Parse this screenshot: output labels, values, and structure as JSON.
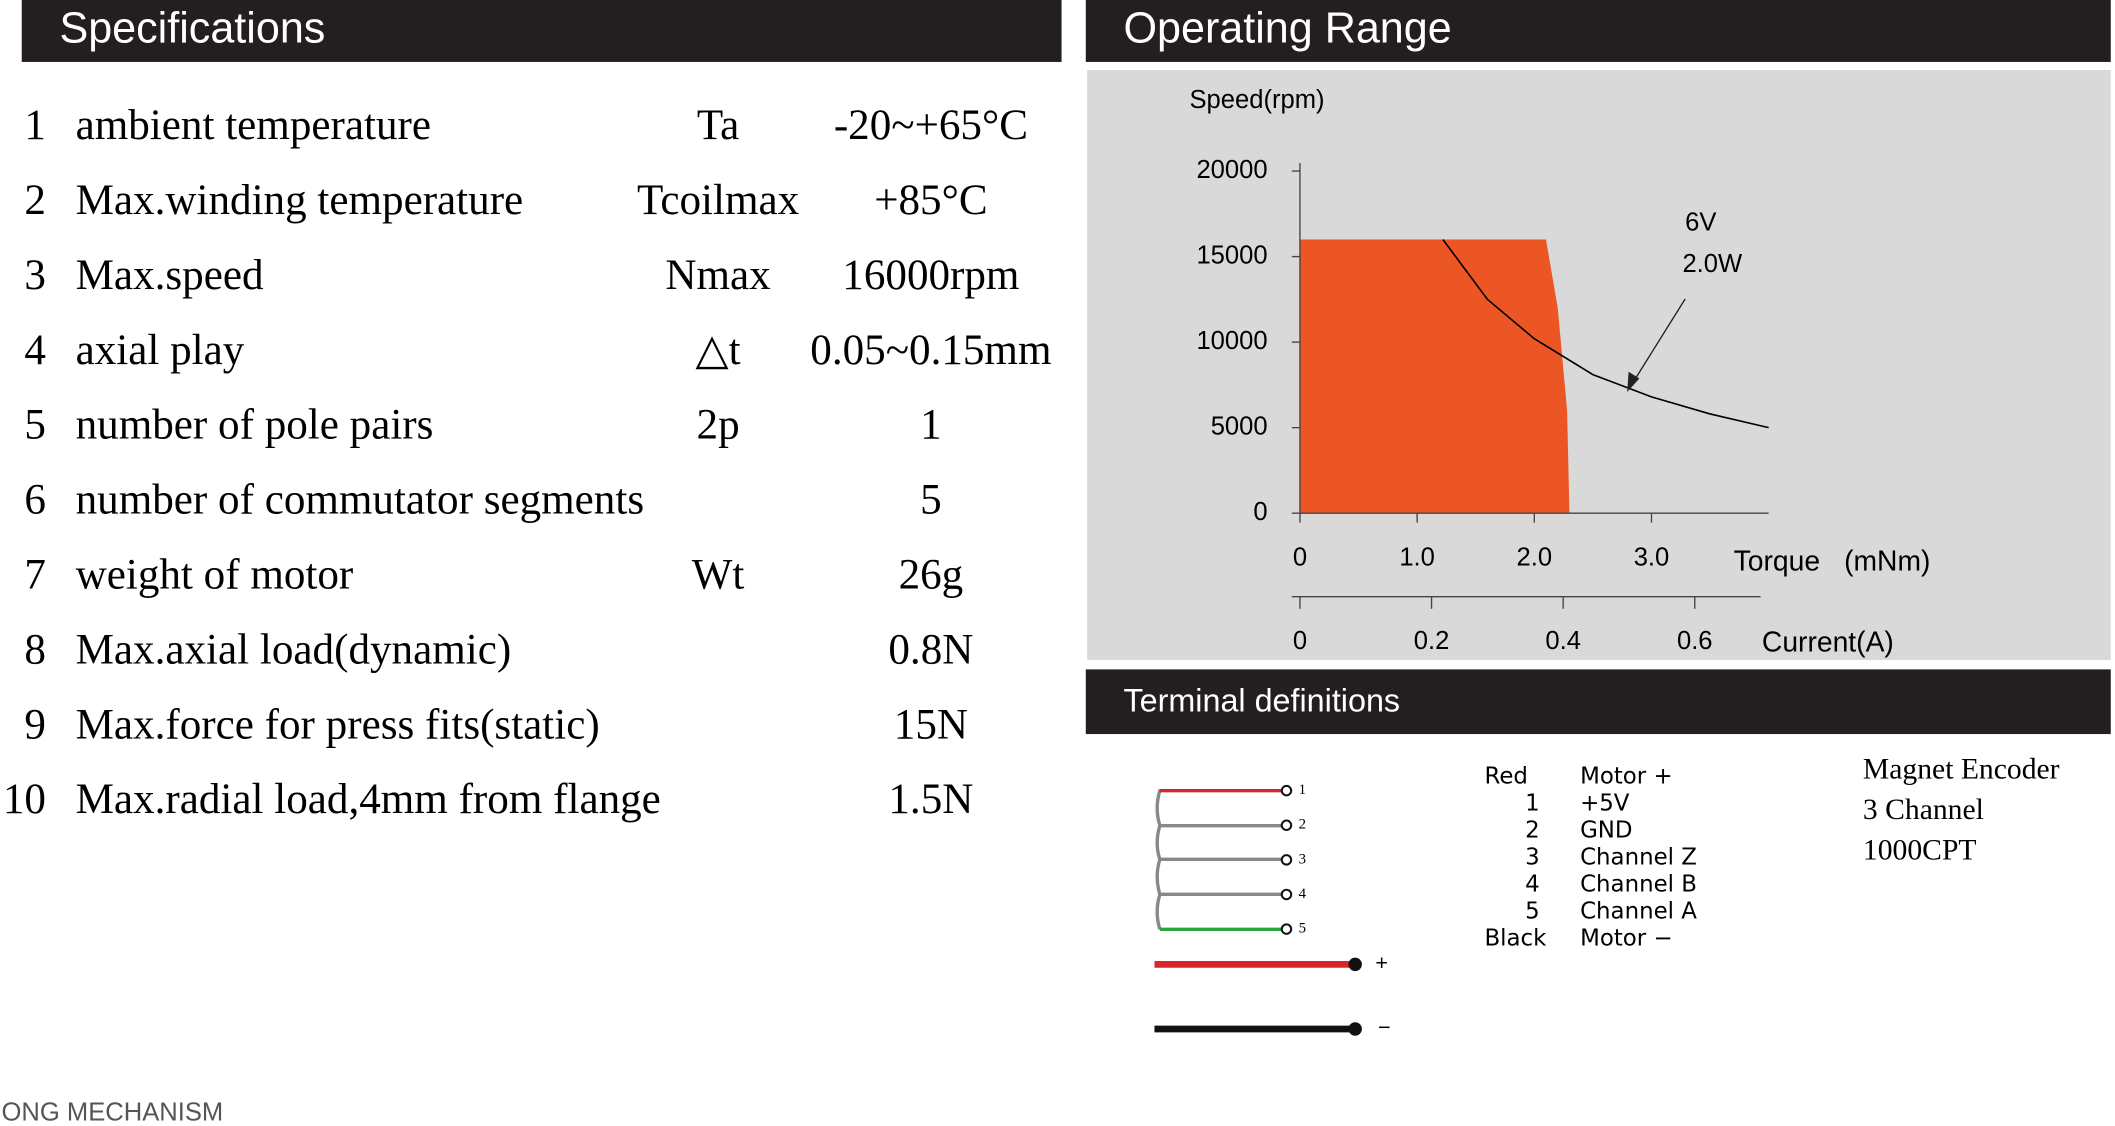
{
  "specifications": {
    "title": "Specifications",
    "rows": [
      {
        "no": "1",
        "name": "ambient temperature",
        "symbol": "Ta",
        "value": "-20~+65°C"
      },
      {
        "no": "2",
        "name": "Max.winding temperature",
        "symbol": "Tcoilmax",
        "value": "+85°C"
      },
      {
        "no": "3",
        "name": "Max.speed",
        "symbol": "Nmax",
        "value": "16000rpm"
      },
      {
        "no": "4",
        "name": "axial play",
        "symbol": "△t",
        "value": "0.05~0.15mm"
      },
      {
        "no": "5",
        "name": "number of pole pairs",
        "symbol": "2p",
        "value": "1"
      },
      {
        "no": "6",
        "name": "number of commutator segments",
        "value": "5"
      },
      {
        "no": "7",
        "name": "weight of motor",
        "symbol": "Wt",
        "value": "26g"
      },
      {
        "no": "8",
        "name": "Max.axial load(dynamic)",
        "value": "0.8N"
      },
      {
        "no": "9",
        "name": "Max.force for press fits(static)",
        "value": "15N"
      },
      {
        "no": "10",
        "name": "Max.radial load,4mm from flange",
        "value": "1.5N"
      }
    ]
  },
  "operating_range": {
    "title": "Operating Range",
    "chart": {
      "type": "area",
      "y_label": "Speed(rpm)",
      "x_label": "Torque",
      "x_unit": "(mNm)",
      "x2_label": "Current(A)",
      "ylim": [
        0,
        20000
      ],
      "yticks": [
        0,
        5000,
        10000,
        15000,
        20000
      ],
      "xlim": [
        0,
        4
      ],
      "xticks": [
        0,
        {
          "value": 1,
          "label": "1.0"
        },
        {
          "value": 2,
          "label": "2.0"
        },
        {
          "value": 3,
          "label": "3.0"
        }
      ],
      "x2lim": [
        0,
        0.7
      ],
      "x2ticks": [
        0,
        0.2,
        0.4,
        0.6
      ],
      "region": {
        "color": "#ec5625",
        "x": [
          0,
          0,
          2.1,
          2.2,
          2.28,
          2.3
        ],
        "y": [
          0,
          16000,
          16000,
          12000,
          6000,
          0
        ]
      },
      "curve": {
        "color": "#000000",
        "x": [
          1.22,
          1.6,
          2.0,
          2.5,
          3.0,
          3.5,
          4.0
        ],
        "y": [
          16000,
          12500,
          10200,
          8100,
          6800,
          5800,
          5000
        ]
      },
      "annotations": [
        "6V",
        "2.0W"
      ]
    }
  },
  "terminal": {
    "title": "Terminal definitions",
    "pin_labels": [
      "1",
      "2",
      "3",
      "4",
      "5"
    ],
    "power_labels": [
      "+",
      "−"
    ],
    "pins": [
      {
        "wire": "Red",
        "function": "Motor +"
      },
      {
        "wire": "1",
        "function": "+5V"
      },
      {
        "wire": "2",
        "function": "GND"
      },
      {
        "wire": "3",
        "function": "Channel Z"
      },
      {
        "wire": "4",
        "function": "Channel B"
      },
      {
        "wire": "5",
        "function": "Channel A"
      },
      {
        "wire": "Black",
        "function": "Motor −"
      }
    ],
    "encoder": [
      "Magnet Encoder",
      "3 Channel",
      "1000CPT"
    ]
  },
  "footer": "ONG MECHANISM"
}
